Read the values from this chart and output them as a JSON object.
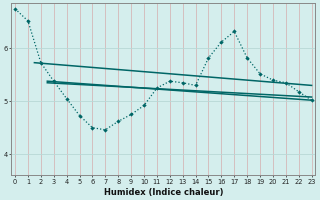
{
  "xlabel": "Humidex (Indice chaleur)",
  "bg_color": "#d4eeed",
  "grid_color": "#b8d8d6",
  "line_color": "#006666",
  "x_ticks": [
    0,
    1,
    2,
    3,
    4,
    5,
    6,
    7,
    8,
    9,
    10,
    11,
    12,
    13,
    14,
    15,
    16,
    17,
    18,
    19,
    20,
    21,
    22,
    23
  ],
  "y_ticks": [
    4,
    5,
    6
  ],
  "ylim": [
    3.6,
    6.85
  ],
  "xlim": [
    -0.3,
    23.3
  ],
  "series_dotted": {
    "x": [
      0,
      1,
      2,
      3,
      4,
      5,
      6,
      7,
      8,
      9,
      10,
      11,
      12,
      13,
      14,
      15,
      16,
      17,
      18,
      19,
      20,
      21,
      22,
      23
    ],
    "y": [
      6.75,
      6.52,
      5.73,
      5.38,
      5.05,
      4.73,
      4.5,
      4.46,
      4.62,
      4.75,
      4.92,
      5.25,
      5.38,
      5.35,
      5.3,
      5.82,
      6.12,
      6.32,
      5.82,
      5.52,
      5.4,
      5.35,
      5.18,
      5.02
    ]
  },
  "series_line1": {
    "x": [
      1.5,
      23
    ],
    "y": [
      5.73,
      5.3
    ]
  },
  "series_line2": {
    "x": [
      2.5,
      23
    ],
    "y": [
      5.38,
      5.02
    ]
  },
  "series_line3": {
    "x": [
      2.5,
      23
    ],
    "y": [
      5.35,
      5.08
    ]
  }
}
